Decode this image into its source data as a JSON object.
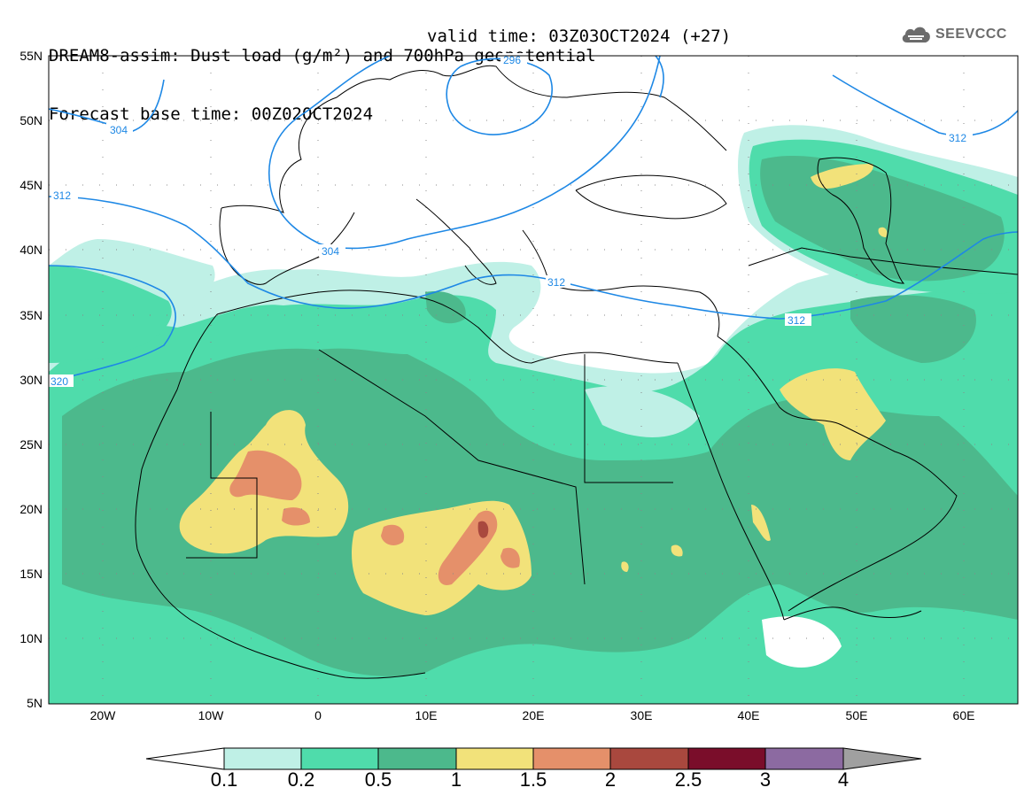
{
  "header": {
    "title": "DREAM8-assim: Dust load (g/m²) and 700hPa geopotential",
    "base_time": "Forecast base time: 00Z02OCT2024",
    "valid_time": "valid time: 03Z03OCT2024 (+27)"
  },
  "logo": {
    "text": "SEEVCCC",
    "icon": "cloud-logo-icon"
  },
  "map": {
    "lat_labels": [
      "55N",
      "50N",
      "45N",
      "40N",
      "35N",
      "30N",
      "25N",
      "20N",
      "15N",
      "10N",
      "5N"
    ],
    "lon_labels": [
      "20W",
      "10W",
      "0",
      "10E",
      "20E",
      "30E",
      "40E",
      "50E",
      "60E"
    ],
    "contour_labels": [
      "296",
      "304",
      "312",
      "304",
      "312",
      "320",
      "312",
      "312"
    ],
    "colors": {
      "geopotential_line": "#1e88e5",
      "coastline": "#000000"
    }
  },
  "colorbar": {
    "labels": [
      "0.1",
      "0.2",
      "0.5",
      "1",
      "1.5",
      "2",
      "2.5",
      "3",
      "4"
    ],
    "colors": [
      "#ffffff",
      "#bff0e6",
      "#4fdcab",
      "#4cb98c",
      "#f2e27a",
      "#e5906a",
      "#a9483e",
      "#7a0d2a",
      "#8c6aa1",
      "#a0a0a0"
    ]
  }
}
